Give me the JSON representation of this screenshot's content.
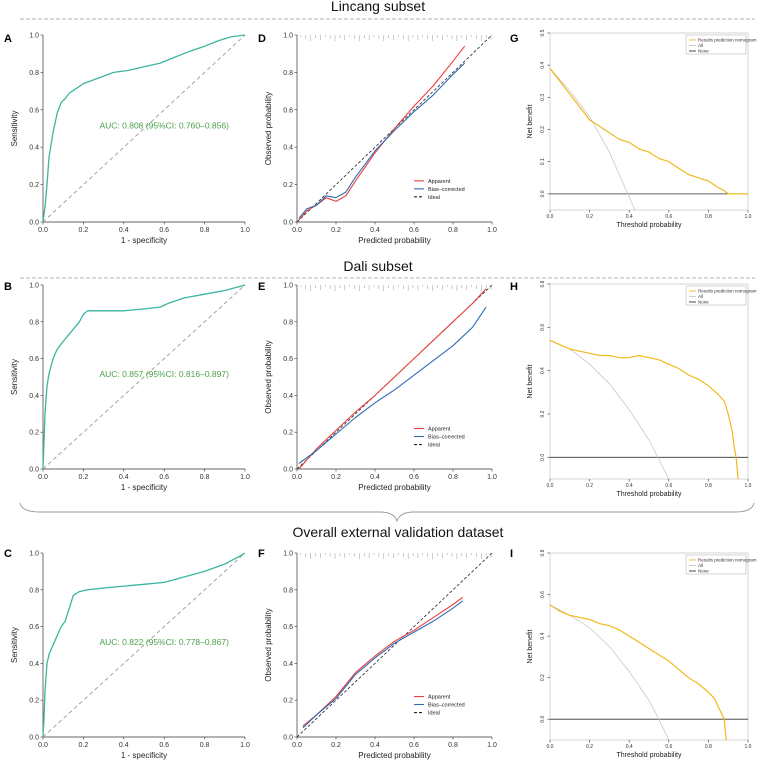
{
  "sections": [
    {
      "title": "Lincang subset"
    },
    {
      "title": "Dali subset"
    },
    {
      "title": "Overall external validation dataset"
    }
  ],
  "colors": {
    "roc": "#3cb5a0",
    "diagonal": "#9a9a9a",
    "auc_text": "#4aa04a",
    "apparent": "#e8403a",
    "bias_corrected": "#2f6db5",
    "ideal": "#222222",
    "nomogram": "#f2b81c",
    "all": "#c8c8c8",
    "none": "#333333",
    "separator": "#999999"
  },
  "chart_data": [
    {
      "panel": "A",
      "type": "line",
      "subtype": "roc",
      "xlabel": "1 - specificity",
      "ylabel": "Sensitivity",
      "xlim": [
        0,
        1
      ],
      "ylim": [
        0,
        1
      ],
      "xticks": [
        "0.0",
        "0.2",
        "0.4",
        "0.6",
        "0.8",
        "1.0"
      ],
      "yticks": [
        "0.0",
        "0.2",
        "0.4",
        "0.6",
        "0.8",
        "1.0"
      ],
      "annotation": "AUC: 0.808 (95%CI: 0.760–0.856)",
      "series": [
        {
          "name": "ROC",
          "x": [
            0,
            0.01,
            0.02,
            0.03,
            0.05,
            0.07,
            0.09,
            0.11,
            0.13,
            0.16,
            0.2,
            0.25,
            0.3,
            0.35,
            0.42,
            0.5,
            0.58,
            0.65,
            0.72,
            0.8,
            0.87,
            0.93,
            1.0
          ],
          "y": [
            0,
            0.08,
            0.2,
            0.35,
            0.48,
            0.58,
            0.64,
            0.66,
            0.69,
            0.71,
            0.74,
            0.76,
            0.78,
            0.8,
            0.81,
            0.83,
            0.85,
            0.88,
            0.91,
            0.94,
            0.97,
            0.99,
            1.0
          ]
        }
      ]
    },
    {
      "panel": "D",
      "type": "line",
      "subtype": "calibration",
      "xlabel": "Predicted probability",
      "ylabel": "Observed probability",
      "xlim": [
        0,
        1
      ],
      "ylim": [
        0,
        1
      ],
      "xticks": [
        "0.0",
        "0.2",
        "0.4",
        "0.6",
        "0.8",
        "1.0"
      ],
      "yticks": [
        "0.0",
        "0.2",
        "0.4",
        "0.6",
        "0.8",
        "1.0"
      ],
      "legend": [
        "Apparent",
        "Bias–corrected",
        "Ideal"
      ],
      "series": [
        {
          "name": "Apparent",
          "x": [
            0.01,
            0.05,
            0.1,
            0.15,
            0.2,
            0.25,
            0.3,
            0.4,
            0.5,
            0.6,
            0.7,
            0.8,
            0.86
          ],
          "y": [
            0.01,
            0.06,
            0.09,
            0.13,
            0.11,
            0.14,
            0.22,
            0.37,
            0.5,
            0.62,
            0.73,
            0.86,
            0.94
          ]
        },
        {
          "name": "Bias–corrected",
          "x": [
            0.01,
            0.05,
            0.1,
            0.15,
            0.2,
            0.25,
            0.3,
            0.4,
            0.5,
            0.6,
            0.7,
            0.8,
            0.86
          ],
          "y": [
            0.02,
            0.07,
            0.09,
            0.14,
            0.13,
            0.16,
            0.24,
            0.38,
            0.49,
            0.59,
            0.68,
            0.79,
            0.85
          ]
        },
        {
          "name": "Ideal",
          "x": [
            0,
            1
          ],
          "y": [
            0,
            1
          ]
        }
      ]
    },
    {
      "panel": "G",
      "type": "line",
      "subtype": "decision_curve",
      "xlabel": "Threshold probability",
      "ylabel": "Net benefit",
      "xlim": [
        0,
        1
      ],
      "ylim": [
        -0.05,
        0.5
      ],
      "xticks": [
        "0.0",
        "0.2",
        "0.4",
        "0.6",
        "0.8",
        "1.0"
      ],
      "yticks": [
        "0.0",
        "0.1",
        "0.2",
        "0.3",
        "0.4",
        "0.5"
      ],
      "legend": [
        "Results prediction nomogram",
        "All",
        "None"
      ],
      "series": [
        {
          "name": "Results prediction nomogram",
          "x": [
            0,
            0.05,
            0.1,
            0.15,
            0.2,
            0.25,
            0.3,
            0.35,
            0.4,
            0.45,
            0.5,
            0.55,
            0.6,
            0.65,
            0.7,
            0.75,
            0.8,
            0.85,
            0.88,
            0.9,
            1.0
          ],
          "y": [
            0.39,
            0.35,
            0.31,
            0.27,
            0.23,
            0.21,
            0.19,
            0.17,
            0.16,
            0.14,
            0.13,
            0.11,
            0.1,
            0.08,
            0.06,
            0.05,
            0.04,
            0.02,
            0.01,
            0.0,
            0.0
          ]
        },
        {
          "name": "All",
          "x": [
            0,
            0.1,
            0.2,
            0.3,
            0.35,
            0.4,
            0.43
          ],
          "y": [
            0.39,
            0.32,
            0.24,
            0.13,
            0.06,
            -0.01,
            -0.05
          ]
        },
        {
          "name": "None",
          "x": [
            0,
            1
          ],
          "y": [
            0,
            0
          ]
        }
      ]
    },
    {
      "panel": "B",
      "type": "line",
      "subtype": "roc",
      "xlabel": "1 - specificity",
      "ylabel": "Sensitivity",
      "xlim": [
        0,
        1
      ],
      "ylim": [
        0,
        1
      ],
      "xticks": [
        "0.0",
        "0.2",
        "0.4",
        "0.6",
        "0.8",
        "1.0"
      ],
      "yticks": [
        "0.0",
        "0.2",
        "0.4",
        "0.6",
        "0.8",
        "1.0"
      ],
      "annotation": "AUC: 0.857 (95%CI: 0.816–0.897)",
      "series": [
        {
          "name": "ROC",
          "x": [
            0,
            0.005,
            0.01,
            0.02,
            0.03,
            0.05,
            0.07,
            0.09,
            0.12,
            0.15,
            0.18,
            0.2,
            0.22,
            0.3,
            0.4,
            0.5,
            0.58,
            0.62,
            0.7,
            0.8,
            0.9,
            0.97,
            1.0
          ],
          "y": [
            0,
            0.15,
            0.3,
            0.45,
            0.52,
            0.6,
            0.65,
            0.68,
            0.72,
            0.76,
            0.8,
            0.84,
            0.86,
            0.86,
            0.86,
            0.87,
            0.88,
            0.9,
            0.93,
            0.95,
            0.97,
            0.99,
            1.0
          ]
        }
      ]
    },
    {
      "panel": "E",
      "type": "line",
      "subtype": "calibration",
      "xlabel": "Predicted probability",
      "ylabel": "Observed probability",
      "xlim": [
        0,
        1
      ],
      "ylim": [
        0,
        1
      ],
      "xticks": [
        "0.0",
        "0.2",
        "0.4",
        "0.6",
        "0.8",
        "1.0"
      ],
      "yticks": [
        "0.0",
        "0.2",
        "0.4",
        "0.6",
        "0.8",
        "1.0"
      ],
      "legend": [
        "Apparent",
        "Bias–corrected",
        "Ideal"
      ],
      "series": [
        {
          "name": "Apparent",
          "x": [
            0.01,
            0.1,
            0.2,
            0.3,
            0.4,
            0.5,
            0.6,
            0.7,
            0.8,
            0.9,
            0.97
          ],
          "y": [
            0.0,
            0.11,
            0.21,
            0.31,
            0.4,
            0.5,
            0.6,
            0.7,
            0.8,
            0.9,
            0.98
          ]
        },
        {
          "name": "Bias–corrected",
          "x": [
            0.01,
            0.1,
            0.2,
            0.3,
            0.4,
            0.5,
            0.6,
            0.7,
            0.8,
            0.9,
            0.97
          ],
          "y": [
            0.03,
            0.1,
            0.19,
            0.28,
            0.36,
            0.43,
            0.51,
            0.59,
            0.67,
            0.77,
            0.88
          ]
        },
        {
          "name": "Ideal",
          "x": [
            0,
            1
          ],
          "y": [
            0,
            1
          ]
        }
      ]
    },
    {
      "panel": "H",
      "type": "line",
      "subtype": "decision_curve",
      "xlabel": "Threshold probability",
      "ylabel": "Net benefit",
      "xlim": [
        0,
        1
      ],
      "ylim": [
        -0.1,
        0.8
      ],
      "xticks": [
        "0.0",
        "0.2",
        "0.4",
        "0.6",
        "0.8",
        "1.0"
      ],
      "yticks": [
        "0.0",
        "0.2",
        "0.4",
        "0.6",
        "0.8"
      ],
      "legend": [
        "Results prediction nomogram",
        "All",
        "None"
      ],
      "series": [
        {
          "name": "Results prediction nomogram",
          "x": [
            0,
            0.05,
            0.1,
            0.15,
            0.2,
            0.25,
            0.3,
            0.35,
            0.4,
            0.45,
            0.5,
            0.55,
            0.6,
            0.65,
            0.7,
            0.75,
            0.8,
            0.85,
            0.88,
            0.9,
            0.92,
            0.93,
            0.94,
            0.95
          ],
          "y": [
            0.54,
            0.52,
            0.5,
            0.49,
            0.48,
            0.47,
            0.47,
            0.46,
            0.46,
            0.47,
            0.46,
            0.45,
            0.43,
            0.41,
            0.38,
            0.36,
            0.33,
            0.29,
            0.26,
            0.2,
            0.12,
            0.05,
            0.0,
            -0.1
          ]
        },
        {
          "name": "All",
          "x": [
            0,
            0.1,
            0.2,
            0.3,
            0.4,
            0.5,
            0.55,
            0.6
          ],
          "y": [
            0.54,
            0.5,
            0.43,
            0.34,
            0.22,
            0.08,
            -0.01,
            -0.1
          ]
        },
        {
          "name": "None",
          "x": [
            0,
            1
          ],
          "y": [
            0,
            0
          ]
        }
      ]
    },
    {
      "panel": "C",
      "type": "line",
      "subtype": "roc",
      "xlabel": "1 - specificity",
      "ylabel": "Sensitivity",
      "xlim": [
        0,
        1
      ],
      "ylim": [
        0,
        1
      ],
      "xticks": [
        "0.0",
        "0.2",
        "0.4",
        "0.6",
        "0.8",
        "1.0"
      ],
      "yticks": [
        "0.0",
        "0.2",
        "0.4",
        "0.6",
        "0.8",
        "1.0"
      ],
      "annotation": "AUC: 0.822 (95%CI: 0.778–0.867)",
      "series": [
        {
          "name": "ROC",
          "x": [
            0,
            0.005,
            0.01,
            0.02,
            0.03,
            0.05,
            0.07,
            0.09,
            0.11,
            0.13,
            0.15,
            0.18,
            0.22,
            0.3,
            0.4,
            0.5,
            0.6,
            0.7,
            0.8,
            0.9,
            0.97,
            1.0
          ],
          "y": [
            0,
            0.1,
            0.25,
            0.4,
            0.45,
            0.5,
            0.55,
            0.6,
            0.63,
            0.7,
            0.77,
            0.79,
            0.8,
            0.81,
            0.82,
            0.83,
            0.84,
            0.87,
            0.9,
            0.94,
            0.98,
            1.0
          ]
        }
      ]
    },
    {
      "panel": "F",
      "type": "line",
      "subtype": "calibration",
      "xlabel": "Predicted probability",
      "ylabel": "Observed probability",
      "xlim": [
        0,
        1
      ],
      "ylim": [
        0,
        1
      ],
      "xticks": [
        "0.0",
        "0.2",
        "0.4",
        "0.6",
        "0.8",
        "1.0"
      ],
      "yticks": [
        "0.0",
        "0.2",
        "0.4",
        "0.6",
        "0.8",
        "1.0"
      ],
      "legend": [
        "Apparent",
        "Bias–corrected",
        "Ideal"
      ],
      "series": [
        {
          "name": "Apparent",
          "x": [
            0.03,
            0.1,
            0.2,
            0.3,
            0.4,
            0.5,
            0.6,
            0.7,
            0.8,
            0.85
          ],
          "y": [
            0.06,
            0.12,
            0.22,
            0.35,
            0.44,
            0.52,
            0.58,
            0.65,
            0.72,
            0.76
          ]
        },
        {
          "name": "Bias–corrected",
          "x": [
            0.03,
            0.1,
            0.2,
            0.3,
            0.4,
            0.5,
            0.6,
            0.7,
            0.8,
            0.85
          ],
          "y": [
            0.05,
            0.12,
            0.21,
            0.34,
            0.43,
            0.51,
            0.57,
            0.63,
            0.7,
            0.74
          ]
        },
        {
          "name": "Ideal",
          "x": [
            0,
            1
          ],
          "y": [
            0,
            1
          ]
        }
      ]
    },
    {
      "panel": "I",
      "type": "line",
      "subtype": "decision_curve",
      "xlabel": "Threshold probability",
      "ylabel": "Net benefit",
      "xlim": [
        0,
        1
      ],
      "ylim": [
        -0.1,
        0.8
      ],
      "xticks": [
        "0.0",
        "0.2",
        "0.4",
        "0.6",
        "0.8",
        "1.0"
      ],
      "yticks": [
        "0.0",
        "0.2",
        "0.4",
        "0.6",
        "0.8"
      ],
      "legend": [
        "Results prediction nomogram",
        "All",
        "None"
      ],
      "series": [
        {
          "name": "Results prediction nomogram",
          "x": [
            0,
            0.05,
            0.1,
            0.15,
            0.2,
            0.25,
            0.3,
            0.35,
            0.4,
            0.45,
            0.5,
            0.55,
            0.6,
            0.65,
            0.7,
            0.75,
            0.8,
            0.83,
            0.85,
            0.87,
            0.88,
            0.89
          ],
          "y": [
            0.55,
            0.52,
            0.5,
            0.49,
            0.48,
            0.46,
            0.45,
            0.43,
            0.4,
            0.37,
            0.34,
            0.31,
            0.28,
            0.24,
            0.2,
            0.17,
            0.13,
            0.1,
            0.06,
            0.02,
            0.0,
            -0.1
          ]
        },
        {
          "name": "All",
          "x": [
            0,
            0.1,
            0.2,
            0.3,
            0.4,
            0.5,
            0.55,
            0.6
          ],
          "y": [
            0.55,
            0.5,
            0.44,
            0.35,
            0.23,
            0.09,
            0.0,
            -0.1
          ]
        },
        {
          "name": "None",
          "x": [
            0,
            1
          ],
          "y": [
            0,
            0
          ]
        }
      ]
    }
  ]
}
